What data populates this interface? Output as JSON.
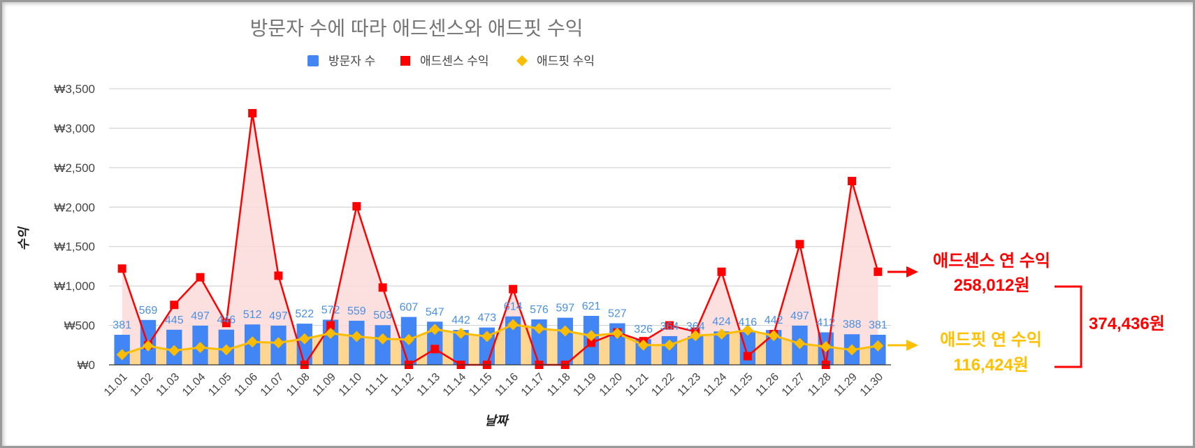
{
  "chart_data": {
    "type": "bar",
    "title": "방문자 수에 따라 애드센스와 애드핏 수익",
    "xlabel": "날짜",
    "ylabel": "수익",
    "ylim": [
      0,
      3500
    ],
    "yticks": [
      "₩0",
      "₩500",
      "₩1,000",
      "₩1,500",
      "₩2,000",
      "₩2,500",
      "₩3,000",
      "₩3,500"
    ],
    "categories": [
      "11.01",
      "11.02",
      "11.03",
      "11.04",
      "11.05",
      "11.06",
      "11.07",
      "11.08",
      "11.09",
      "11.10",
      "11.11",
      "11.12",
      "11.13",
      "11.14",
      "11.15",
      "11.16",
      "11.17",
      "11.18",
      "11.19",
      "11.20",
      "11.21",
      "11.22",
      "11.23",
      "11.24",
      "11.25",
      "11.26",
      "11.27",
      "11.28",
      "11.29",
      "11.30"
    ],
    "series": [
      {
        "name": "방문자 수",
        "type": "bar",
        "color": "#4285f4",
        "values": [
          381,
          569,
          445,
          497,
          446,
          512,
          497,
          522,
          572,
          559,
          503,
          607,
          547,
          442,
          473,
          614,
          576,
          597,
          621,
          527,
          326,
          364,
          364,
          424,
          416,
          442,
          497,
          412,
          388,
          381
        ]
      },
      {
        "name": "애드센스 수익",
        "type": "area-line",
        "color": "#ff0000",
        "values": [
          1220,
          250,
          760,
          1110,
          530,
          3190,
          1130,
          0,
          500,
          2010,
          980,
          0,
          200,
          0,
          0,
          960,
          0,
          0,
          280,
          410,
          300,
          500,
          420,
          1180,
          110,
          390,
          1530,
          0,
          2330,
          1180
        ]
      },
      {
        "name": "애드핏 수익",
        "type": "line",
        "color": "#fbbc04",
        "values": [
          130,
          240,
          180,
          220,
          190,
          290,
          280,
          330,
          400,
          360,
          330,
          320,
          450,
          400,
          360,
          510,
          460,
          430,
          370,
          400,
          250,
          250,
          370,
          390,
          440,
          370,
          270,
          230,
          190,
          240
        ]
      }
    ],
    "legend": [
      "방문자 수",
      "애드센스 수익",
      "애드핏 수익"
    ],
    "legend_position": "top"
  },
  "annotations": {
    "adsense_label": "애드센스 연 수익",
    "adsense_amount": "258,012원",
    "adfit_label": "애드핏 연 수익",
    "adfit_amount": "116,424원",
    "total_amount": "374,436원"
  },
  "colors": {
    "bar": "#4285f4",
    "adsense": "#ff0000",
    "adfit": "#fbbc04",
    "area_fill": "#fcdada",
    "adfit_label": "#ffc000"
  }
}
